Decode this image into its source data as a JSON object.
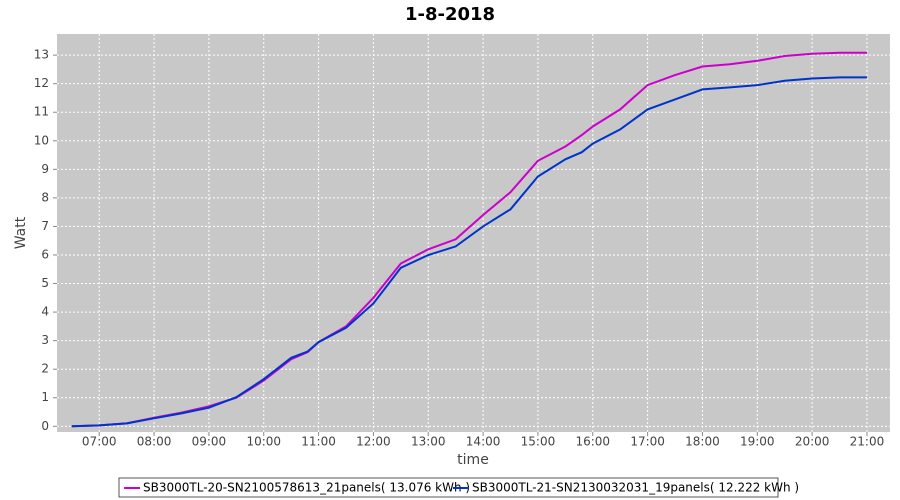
{
  "chart_data": {
    "type": "line",
    "title": "1-8-2018",
    "x_label": "time",
    "y_label": "Watt",
    "x": [
      6.5,
      7,
      7.5,
      8,
      8.5,
      9,
      9.5,
      10,
      10.5,
      10.8,
      11,
      11.5,
      12,
      12.5,
      13,
      13.5,
      14,
      14.5,
      15,
      15.5,
      15.8,
      16,
      16.5,
      17,
      17.5,
      18,
      18.5,
      19,
      19.5,
      20,
      20.5,
      21
    ],
    "series": [
      {
        "name": "SB3000TL-20-SN2100578613_21panels( 13.076 kWh )",
        "color": "#cc00cc",
        "values": [
          0,
          0.03,
          0.1,
          0.3,
          0.48,
          0.7,
          1.0,
          1.6,
          2.35,
          2.6,
          2.95,
          3.5,
          4.5,
          5.7,
          6.2,
          6.55,
          7.4,
          8.2,
          9.3,
          9.8,
          10.2,
          10.5,
          11.1,
          11.95,
          12.3,
          12.6,
          12.68,
          12.8,
          12.97,
          13.05,
          13.08,
          13.08
        ]
      },
      {
        "name": "SB3000TL-21-SN2130032031_19panels( 12.222 kWh )",
        "color": "#0033cc",
        "values": [
          0,
          0.03,
          0.1,
          0.28,
          0.45,
          0.65,
          1.02,
          1.65,
          2.4,
          2.62,
          2.95,
          3.45,
          4.3,
          5.55,
          6.0,
          6.3,
          7.0,
          7.6,
          8.75,
          9.35,
          9.6,
          9.9,
          10.4,
          11.1,
          11.45,
          11.8,
          11.87,
          11.95,
          12.1,
          12.18,
          12.22,
          12.22
        ]
      }
    ],
    "xlim": [
      6.23,
      21.42
    ],
    "ylim": [
      -0.2,
      13.74
    ],
    "xticks": [
      {
        "value": 7,
        "label": "07:00"
      },
      {
        "value": 8,
        "label": "08:00"
      },
      {
        "value": 9,
        "label": "09:00"
      },
      {
        "value": 10,
        "label": "10:00"
      },
      {
        "value": 11,
        "label": "11:00"
      },
      {
        "value": 12,
        "label": "12:00"
      },
      {
        "value": 13,
        "label": "13:00"
      },
      {
        "value": 14,
        "label": "14:00"
      },
      {
        "value": 15,
        "label": "15:00"
      },
      {
        "value": 16,
        "label": "16:00"
      },
      {
        "value": 17,
        "label": "17:00"
      },
      {
        "value": 18,
        "label": "18:00"
      },
      {
        "value": 19,
        "label": "19:00"
      },
      {
        "value": 20,
        "label": "20:00"
      },
      {
        "value": 21,
        "label": "21:00"
      }
    ],
    "yticks": [
      0,
      1,
      2,
      3,
      4,
      5,
      6,
      7,
      8,
      9,
      10,
      11,
      12,
      13
    ],
    "grid": true
  }
}
